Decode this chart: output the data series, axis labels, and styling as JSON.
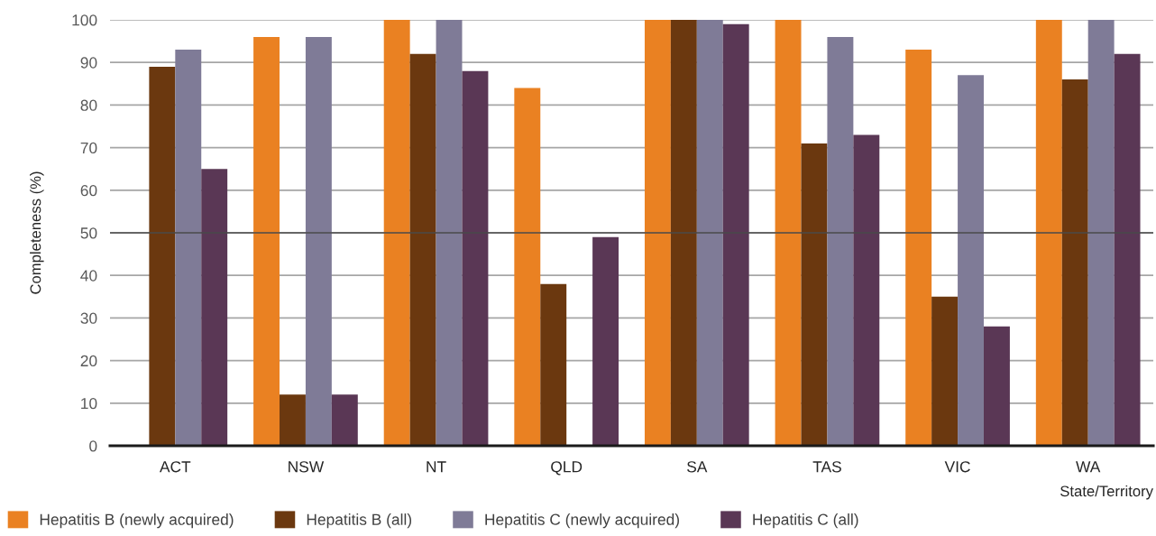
{
  "chart_data": {
    "type": "bar",
    "ylabel": "Completeness (%)",
    "xlabel": "State/Territory",
    "categories": [
      "ACT",
      "NSW",
      "NT",
      "QLD",
      "SA",
      "TAS",
      "VIC",
      "WA"
    ],
    "series": [
      {
        "name": "Hepatitis B (newly acquired)",
        "color": "#ea8122",
        "values": [
          null,
          96,
          100,
          84,
          100,
          100,
          93,
          100
        ]
      },
      {
        "name": "Hepatitis B (all)",
        "color": "#6b380f",
        "values": [
          89,
          12,
          92,
          38,
          100,
          71,
          35,
          86
        ]
      },
      {
        "name": "Hepatitis C (newly acquired)",
        "color": "#7f7b97",
        "values": [
          93,
          96,
          100,
          null,
          100,
          96,
          87,
          100
        ]
      },
      {
        "name": "Hepatitis C (all)",
        "color": "#5a3755",
        "values": [
          65,
          12,
          88,
          49,
          99,
          73,
          28,
          92
        ]
      }
    ],
    "ylim": [
      0,
      100
    ],
    "yticks": [
      0,
      10,
      20,
      30,
      40,
      50,
      60,
      70,
      80,
      90,
      100
    ],
    "ref_lines": [
      {
        "axis": "y",
        "value": 50,
        "color": "#4a4a4a"
      }
    ],
    "grid": "y",
    "legend": "bottom left"
  }
}
